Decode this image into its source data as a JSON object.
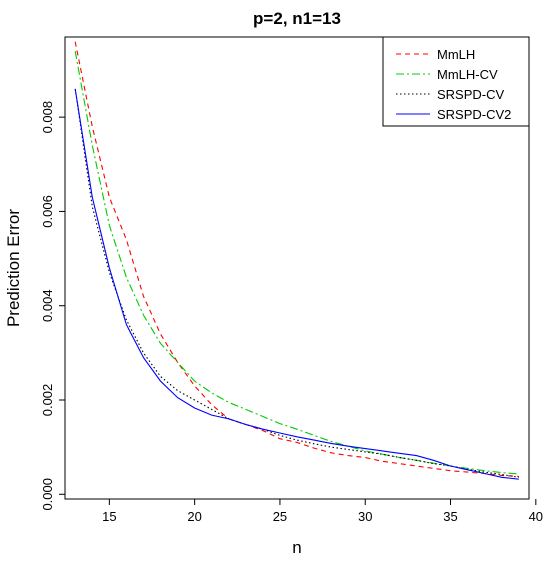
{
  "chart_data": {
    "type": "line",
    "title": "p=2, n1=13",
    "xlabel": "n",
    "ylabel": "Prediction Error",
    "xlim": [
      12.4,
      39.6
    ],
    "ylim": [
      -0.0001,
      0.0097
    ],
    "xticks": [
      "15",
      "20",
      "25",
      "30",
      "35",
      "40"
    ],
    "yticks": [
      "0.000",
      "0.002",
      "0.004",
      "0.006",
      "0.008"
    ],
    "legend_position": "top-right",
    "grid": false,
    "x": [
      13,
      14,
      15,
      16,
      17,
      18,
      19,
      20,
      21,
      22,
      23,
      24,
      25,
      26,
      27,
      28,
      29,
      30,
      31,
      32,
      33,
      34,
      35,
      36,
      37,
      38,
      39
    ],
    "series": [
      {
        "name": "MmLH",
        "color": "#ff0000",
        "dash": "5,4",
        "values": [
          0.0096,
          0.0078,
          0.0063,
          0.0054,
          0.0042,
          0.0034,
          0.0028,
          0.0023,
          0.0019,
          0.0016,
          0.00148,
          0.00135,
          0.00118,
          0.0011,
          0.00098,
          0.00088,
          0.00082,
          0.00078,
          0.0007,
          0.00065,
          0.0006,
          0.00055,
          0.0005,
          0.00047,
          0.00044,
          0.0004,
          0.00038
        ]
      },
      {
        "name": "MmLH-CV",
        "color": "#00cc00",
        "dash": "8,3,2,3",
        "values": [
          0.0094,
          0.0074,
          0.0057,
          0.0046,
          0.0038,
          0.0032,
          0.0028,
          0.0024,
          0.00215,
          0.00195,
          0.0018,
          0.00165,
          0.0015,
          0.00138,
          0.00125,
          0.00112,
          0.00102,
          0.00092,
          0.00085,
          0.00078,
          0.00072,
          0.00066,
          0.0006,
          0.00055,
          0.0005,
          0.00046,
          0.00043
        ]
      },
      {
        "name": "SRSPD-CV",
        "color": "#000000",
        "dash": "1.5,2.5",
        "values": [
          0.0086,
          0.0061,
          0.0047,
          0.0037,
          0.003,
          0.0025,
          0.0022,
          0.002,
          0.0018,
          0.0016,
          0.00148,
          0.00138,
          0.00125,
          0.00115,
          0.00107,
          0.001,
          0.00095,
          0.0009,
          0.00085,
          0.00078,
          0.00072,
          0.00065,
          0.0006,
          0.00053,
          0.00047,
          0.00042,
          0.00036
        ]
      },
      {
        "name": "SRSPD-CV2",
        "color": "#0000ff",
        "dash": "",
        "values": [
          0.0086,
          0.0063,
          0.0048,
          0.0036,
          0.0029,
          0.0024,
          0.00205,
          0.00183,
          0.00168,
          0.0016,
          0.00148,
          0.00138,
          0.0013,
          0.00122,
          0.00115,
          0.00108,
          0.00102,
          0.00097,
          0.00092,
          0.00087,
          0.00082,
          0.00072,
          0.0006,
          0.00052,
          0.00044,
          0.00036,
          0.00032
        ]
      }
    ]
  }
}
